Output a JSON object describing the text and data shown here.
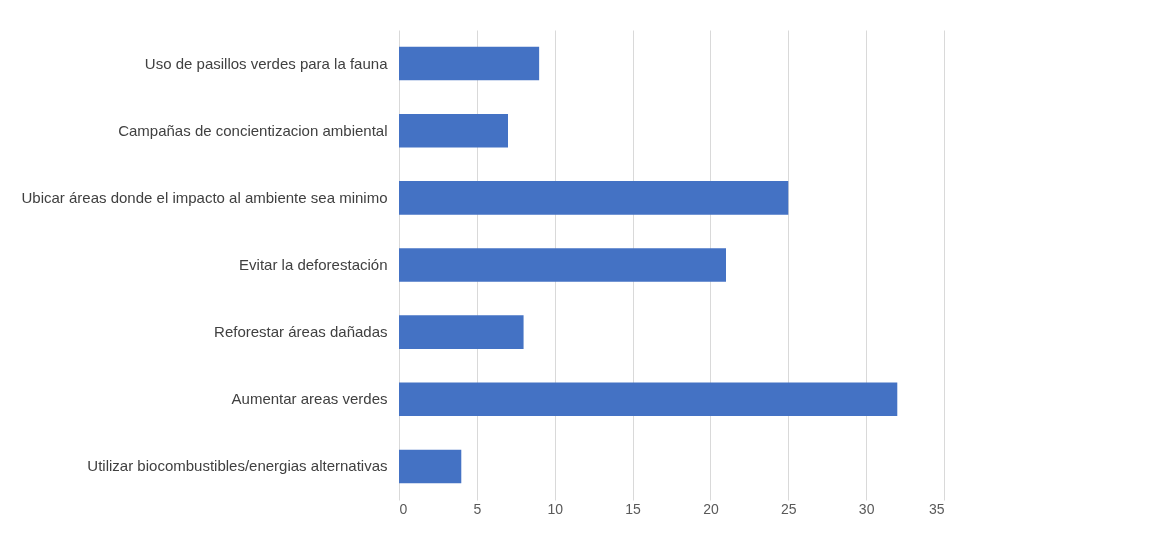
{
  "chart_data": {
    "type": "bar",
    "orientation": "horizontal",
    "categories": [
      "Uso de pasillos verdes para la fauna",
      "Campañas de concientizacion ambiental",
      "Ubicar áreas donde el impacto al ambiente sea minimo",
      "Evitar la deforestación",
      "Reforestar áreas dañadas",
      "Aumentar areas verdes",
      "Utilizar biocombustibles/energias alternativas"
    ],
    "values": [
      9,
      7,
      25,
      21,
      8,
      32,
      4
    ],
    "color": "#4472c4",
    "xlim": [
      0,
      35
    ],
    "xticks": [
      0,
      5,
      10,
      15,
      20,
      25,
      30,
      35
    ],
    "grid": "x"
  }
}
